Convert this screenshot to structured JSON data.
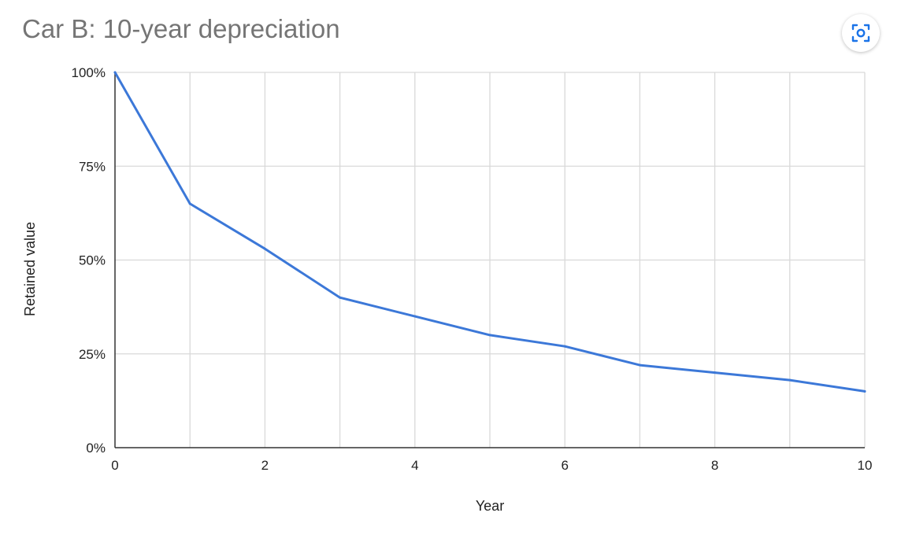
{
  "chart_data": {
    "type": "line",
    "title": "Car B: 10-year depreciation",
    "xlabel": "Year",
    "ylabel": "Retained value",
    "xlim": [
      0,
      10
    ],
    "ylim": [
      0,
      100
    ],
    "x_ticks": [
      0,
      2,
      4,
      6,
      8,
      10
    ],
    "x_tick_labels": [
      "0",
      "2",
      "4",
      "6",
      "8",
      "10"
    ],
    "y_ticks": [
      0,
      25,
      50,
      75,
      100
    ],
    "y_tick_labels": [
      "0%",
      "25%",
      "50%",
      "75%",
      "100%"
    ],
    "grid": true,
    "legend": "none",
    "series": [
      {
        "color": "#3c78d8",
        "x": [
          0,
          1,
          2,
          3,
          4,
          5,
          6,
          7,
          8,
          9,
          10
        ],
        "values": [
          100,
          65,
          53,
          40,
          35,
          30,
          27,
          22,
          20,
          18,
          15
        ]
      }
    ]
  },
  "toolbar": {
    "expand_icon": "focus-expand-icon"
  },
  "colors": {
    "grid": "#d9d9d9",
    "axis": "#333333",
    "line": "#3c78d8",
    "title": "#757575"
  }
}
